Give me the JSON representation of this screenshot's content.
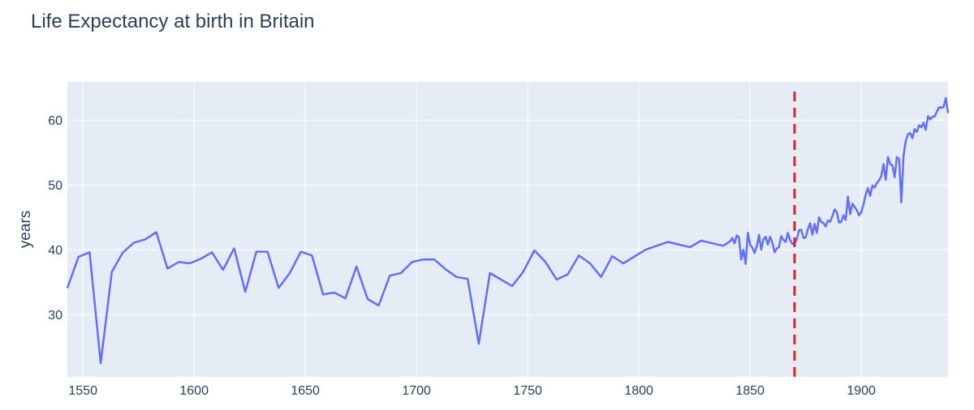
{
  "chart_data": {
    "type": "line",
    "title": "Life Expectancy at birth in Britain",
    "y_label": "years",
    "x": [
      1543,
      1548,
      1553,
      1558,
      1563,
      1568,
      1573,
      1578,
      1583,
      1588,
      1593,
      1598,
      1603,
      1608,
      1613,
      1618,
      1623,
      1628,
      1633,
      1638,
      1643,
      1648,
      1653,
      1658,
      1663,
      1668,
      1673,
      1678,
      1683,
      1688,
      1693,
      1698,
      1703,
      1708,
      1713,
      1718,
      1723,
      1728,
      1733,
      1738,
      1743,
      1748,
      1753,
      1758,
      1763,
      1768,
      1773,
      1778,
      1783,
      1788,
      1793,
      1803,
      1813,
      1823,
      1828,
      1838,
      1841,
      1842,
      1843,
      1844,
      1845,
      1846,
      1847,
      1848,
      1849,
      1850,
      1851,
      1852,
      1853,
      1854,
      1855,
      1856,
      1857,
      1858,
      1859,
      1860,
      1861,
      1862,
      1863,
      1864,
      1865,
      1866,
      1867,
      1868,
      1869,
      1870,
      1871,
      1872,
      1873,
      1874,
      1875,
      1876,
      1877,
      1878,
      1879,
      1880,
      1881,
      1882,
      1883,
      1884,
      1885,
      1886,
      1887,
      1888,
      1889,
      1890,
      1891,
      1892,
      1893,
      1894,
      1895,
      1896,
      1897,
      1898,
      1899,
      1900,
      1901,
      1902,
      1903,
      1904,
      1905,
      1906,
      1907,
      1908,
      1909,
      1910,
      1911,
      1912,
      1913,
      1914,
      1915,
      1916,
      1917,
      1918,
      1919,
      1920,
      1921,
      1922,
      1923,
      1924,
      1925,
      1926,
      1927,
      1928,
      1929,
      1930,
      1931,
      1932,
      1933,
      1934,
      1935,
      1936,
      1937,
      1938,
      1939
    ],
    "series": [
      {
        "name": "Life expectancy",
        "color": "#636efa",
        "values": [
          34.1,
          38.9,
          39.6,
          22.5,
          36.6,
          39.6,
          41.1,
          41.6,
          42.7,
          37.1,
          38.1,
          37.9,
          38.6,
          39.6,
          36.9,
          40.2,
          33.5,
          39.7,
          39.7,
          34.1,
          36.4,
          39.7,
          39.1,
          33.1,
          33.4,
          32.5,
          37.4,
          32.4,
          31.4,
          36.0,
          36.4,
          38.1,
          38.5,
          38.5,
          37.0,
          35.8,
          35.5,
          25.5,
          36.4,
          35.4,
          34.4,
          36.6,
          39.9,
          38.1,
          35.4,
          36.2,
          39.1,
          37.9,
          35.8,
          39.0,
          37.9,
          40.0,
          41.2,
          40.4,
          41.4,
          40.6,
          41.3,
          41.8,
          41.0,
          42.2,
          41.9,
          38.5,
          40.0,
          37.8,
          42.6,
          40.8,
          40.3,
          39.5,
          40.5,
          42.3,
          40.0,
          41.6,
          42.0,
          40.8,
          42.0,
          41.1,
          39.6,
          40.2,
          40.4,
          42.1,
          41.5,
          41.2,
          42.6,
          41.5,
          40.9,
          41.0,
          41.6,
          43.0,
          43.1,
          41.8,
          41.9,
          43.2,
          44.1,
          42.3,
          44.0,
          42.6,
          45.0,
          44.3,
          44.1,
          43.6,
          44.5,
          44.3,
          45.2,
          46.2,
          45.8,
          44.2,
          44.3,
          45.3,
          44.6,
          48.2,
          45.5,
          47.1,
          46.6,
          46.1,
          45.3,
          45.8,
          47.0,
          48.5,
          49.5,
          48.3,
          49.9,
          49.6,
          50.3,
          50.7,
          51.4,
          53.2,
          50.8,
          54.3,
          53.2,
          53.0,
          51.2,
          54.3,
          54.0,
          47.3,
          54.5,
          56.8,
          57.8,
          58.0,
          57.2,
          58.6,
          58.2,
          59.2,
          58.9,
          59.6,
          58.5,
          60.6,
          60.1,
          60.5,
          60.6,
          61.3,
          62.0,
          61.9,
          62.0,
          63.4,
          61.1
        ]
      }
    ],
    "xlim": [
      1543,
      1939
    ],
    "ylim": [
      20.4,
      65.9
    ],
    "xticks": [
      1550,
      1600,
      1650,
      1700,
      1750,
      1800,
      1850,
      1900
    ],
    "yticks": [
      30,
      40,
      50,
      60
    ],
    "grid": true,
    "vline": {
      "x": 1870,
      "color": "#d62728"
    }
  }
}
